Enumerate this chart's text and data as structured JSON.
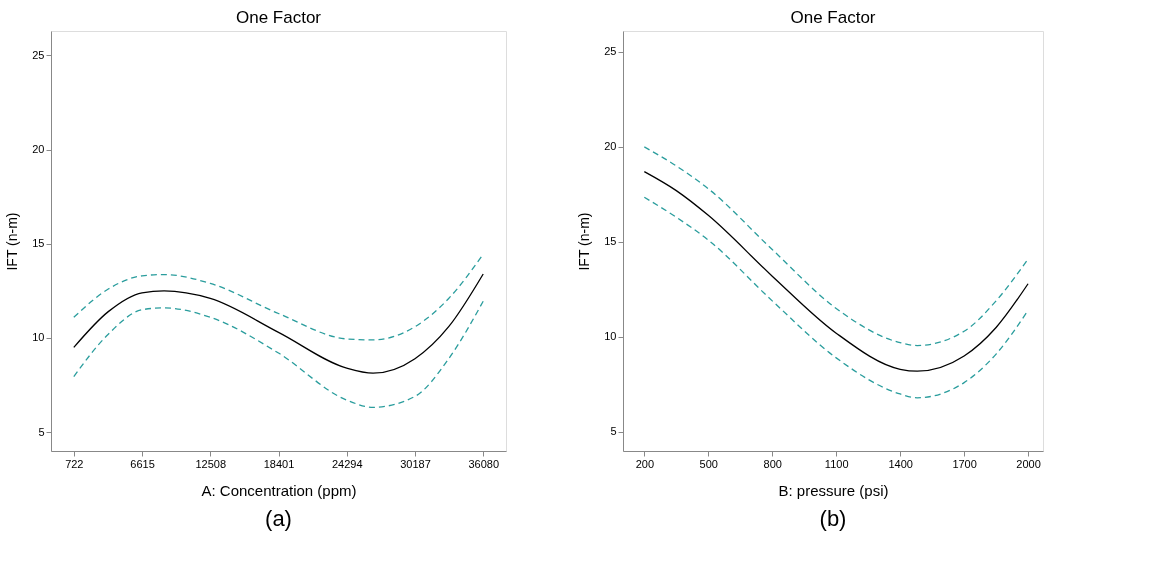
{
  "chart_data": [
    {
      "type": "line",
      "title": "One Factor",
      "xlabel": "A: Concentration (ppm)",
      "ylabel": "IFT (n-m)",
      "xlim": [
        -1247,
        38049
      ],
      "ylim": [
        4,
        26.3
      ],
      "xticks": [
        722,
        6615,
        12508,
        18401,
        24294,
        30187,
        36080
      ],
      "yticks": [
        5,
        10,
        15,
        20,
        25
      ],
      "grid": false,
      "annotations": [
        "(a)"
      ],
      "x": [
        722,
        3700,
        6615,
        8515,
        12508,
        18401,
        24294,
        26563,
        30187,
        33100,
        36080
      ],
      "series": [
        {
          "color": "#000000",
          "line_style": "solid",
          "values": [
            9.5,
            11.4,
            12.4,
            12.5,
            12.1,
            10.3,
            8.4,
            8.13,
            8.9,
            10.6,
            13.4
          ]
        },
        {
          "color": "#2a9d9d",
          "line_style": "dashed",
          "values": [
            11.1,
            12.6,
            13.3,
            13.37,
            12.9,
            11.3,
            9.95,
            9.9,
            10.6,
            12.1,
            14.45
          ]
        },
        {
          "color": "#2a9d9d",
          "line_style": "dashed",
          "values": [
            7.95,
            10.2,
            11.5,
            11.6,
            11.1,
            9.2,
            6.7,
            6.32,
            6.9,
            8.9,
            11.95
          ]
        }
      ]
    },
    {
      "type": "line",
      "title": "One Factor",
      "xlabel": "B: pressure (psi)",
      "ylabel": "IFT (n-m)",
      "xlim": [
        100,
        2070
      ],
      "ylim": [
        4,
        26.1
      ],
      "xticks": [
        200,
        500,
        800,
        1100,
        1400,
        1700,
        2000
      ],
      "yticks": [
        5,
        10,
        15,
        20,
        25
      ],
      "grid": false,
      "annotations": [
        "(b)"
      ],
      "x": [
        200,
        350,
        500,
        800,
        1100,
        1400,
        1480,
        1700,
        1850,
        2000
      ],
      "series": [
        {
          "color": "#000000",
          "line_style": "solid",
          "values": [
            18.7,
            17.7,
            16.4,
            13.2,
            10.2,
            8.3,
            8.2,
            9.0,
            10.5,
            12.8
          ]
        },
        {
          "color": "#2a9d9d",
          "line_style": "dashed",
          "values": [
            20.0,
            19.0,
            17.8,
            14.6,
            11.5,
            9.7,
            9.55,
            10.3,
            11.9,
            14.1
          ]
        },
        {
          "color": "#2a9d9d",
          "line_style": "dashed",
          "values": [
            17.35,
            16.3,
            15.1,
            11.9,
            8.9,
            7.0,
            6.8,
            7.6,
            9.1,
            11.4
          ]
        }
      ]
    }
  ]
}
